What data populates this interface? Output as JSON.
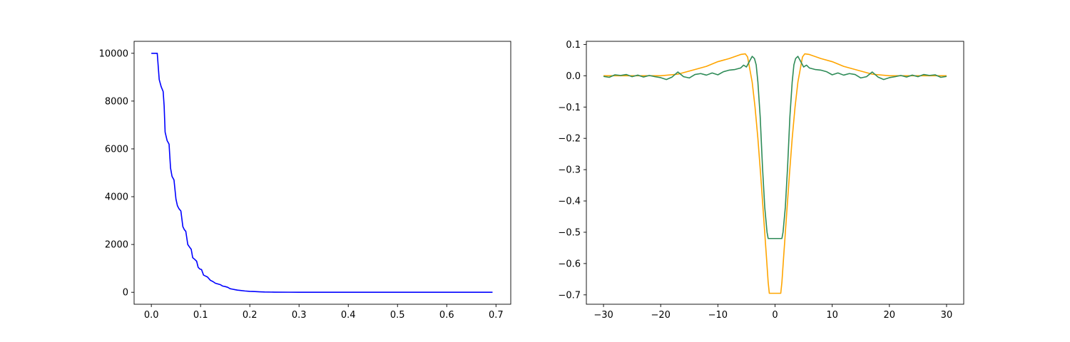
{
  "chart_data": [
    {
      "type": "line",
      "title": "",
      "xlabel": "",
      "ylabel": "",
      "xlim": [
        -0.035,
        0.73
      ],
      "ylim": [
        -500,
        10500
      ],
      "xticks": [
        0.0,
        0.1,
        0.2,
        0.3,
        0.4,
        0.5,
        0.6,
        0.7
      ],
      "xtick_labels": [
        "0.0",
        "0.1",
        "0.2",
        "0.3",
        "0.4",
        "0.5",
        "0.6",
        "0.7"
      ],
      "yticks": [
        0,
        2000,
        4000,
        6000,
        8000,
        10000
      ],
      "ytick_labels": [
        "0",
        "2000",
        "4000",
        "6000",
        "8000",
        "10000"
      ],
      "grid": false,
      "series": [
        {
          "color": "#0000ff",
          "x": [
            0.0,
            0.012,
            0.016,
            0.02,
            0.024,
            0.026,
            0.028,
            0.032,
            0.036,
            0.039,
            0.042,
            0.046,
            0.05,
            0.053,
            0.056,
            0.06,
            0.064,
            0.067,
            0.07,
            0.074,
            0.078,
            0.081,
            0.084,
            0.088,
            0.092,
            0.095,
            0.098,
            0.102,
            0.106,
            0.11,
            0.114,
            0.12,
            0.125,
            0.13,
            0.135,
            0.14,
            0.145,
            0.15,
            0.155,
            0.16,
            0.165,
            0.17,
            0.175,
            0.18,
            0.19,
            0.2,
            0.21,
            0.22,
            0.23,
            0.25,
            0.28,
            0.3,
            0.35,
            0.4,
            0.5,
            0.6,
            0.693
          ],
          "y": [
            10000,
            10000,
            8900,
            8600,
            8400,
            7800,
            6700,
            6350,
            6200,
            5200,
            4850,
            4700,
            3900,
            3620,
            3500,
            3400,
            2750,
            2620,
            2550,
            2000,
            1880,
            1800,
            1450,
            1380,
            1300,
            1050,
            980,
            950,
            720,
            680,
            640,
            500,
            450,
            380,
            350,
            320,
            260,
            240,
            210,
            150,
            130,
            110,
            90,
            80,
            55,
            40,
            30,
            20,
            12,
            6,
            3,
            2,
            1,
            0,
            0,
            0,
            0
          ]
        }
      ]
    },
    {
      "type": "line",
      "title": "",
      "xlabel": "",
      "ylabel": "",
      "xlim": [
        -33,
        33
      ],
      "ylim": [
        -0.73,
        0.11
      ],
      "xticks": [
        -30,
        -20,
        -10,
        0,
        10,
        20,
        30
      ],
      "xtick_labels": [
        "−30",
        "−20",
        "−10",
        "0",
        "10",
        "20",
        "30"
      ],
      "yticks": [
        0.1,
        0.0,
        -0.1,
        -0.2,
        -0.3,
        -0.4,
        -0.5,
        -0.6,
        -0.7
      ],
      "ytick_labels": [
        "0.1",
        "0.0",
        "−0.1",
        "−0.2",
        "−0.3",
        "−0.4",
        "−0.5",
        "−0.6",
        "−0.7"
      ],
      "grid": false,
      "series": [
        {
          "color": "#ffa500",
          "x": [
            -30,
            -20,
            -17,
            -15,
            -12,
            -10,
            -8,
            -6,
            -5.2,
            -4.8,
            -4.5,
            -4,
            -3.5,
            -3,
            -2.5,
            -2,
            -1.5,
            -1.2,
            -1,
            1,
            1.2,
            1.5,
            2,
            2.5,
            3,
            3.5,
            4,
            4.5,
            4.8,
            5.2,
            6,
            8,
            10,
            12,
            15,
            17,
            20,
            30
          ],
          "y": [
            0.0,
            0.0,
            0.005,
            0.015,
            0.03,
            0.045,
            0.055,
            0.068,
            0.07,
            0.06,
            0.03,
            -0.02,
            -0.1,
            -0.2,
            -0.32,
            -0.45,
            -0.58,
            -0.66,
            -0.695,
            -0.695,
            -0.66,
            -0.58,
            -0.45,
            -0.32,
            -0.2,
            -0.1,
            -0.02,
            0.03,
            0.06,
            0.07,
            0.068,
            0.055,
            0.045,
            0.03,
            0.015,
            0.005,
            0.0,
            0.0
          ]
        },
        {
          "color": "#2e8b57",
          "x": [
            -30,
            -29,
            -28,
            -27,
            -26,
            -25,
            -24,
            -23,
            -22,
            -21,
            -20,
            -19,
            -18,
            -17,
            -16,
            -15,
            -14,
            -13,
            -12,
            -11,
            -10,
            -9,
            -8,
            -7,
            -6,
            -5.5,
            -5,
            -4.5,
            -4,
            -3.6,
            -3.3,
            -3,
            -2.6,
            -2.2,
            -1.8,
            -1.4,
            -1.2,
            -1,
            1,
            1.2,
            1.4,
            1.8,
            2.2,
            2.6,
            3,
            3.3,
            3.6,
            4,
            4.5,
            5,
            5.5,
            6,
            7,
            8,
            9,
            10,
            11,
            12,
            13,
            14,
            15,
            16,
            17,
            18,
            19,
            20,
            21,
            22,
            23,
            24,
            25,
            26,
            27,
            28,
            29,
            30
          ],
          "y": [
            -0.002,
            -0.005,
            0.003,
            0.001,
            0.004,
            -0.003,
            0.002,
            -0.004,
            0.001,
            -0.003,
            -0.006,
            -0.012,
            -0.004,
            0.012,
            -0.003,
            -0.007,
            0.004,
            0.007,
            0.002,
            0.009,
            0.003,
            0.013,
            0.018,
            0.02,
            0.025,
            0.034,
            0.028,
            0.045,
            0.062,
            0.055,
            0.035,
            -0.02,
            -0.13,
            -0.29,
            -0.42,
            -0.5,
            -0.52,
            -0.52,
            -0.52,
            -0.52,
            -0.5,
            -0.42,
            -0.29,
            -0.13,
            -0.02,
            0.035,
            0.055,
            0.062,
            0.045,
            0.028,
            0.034,
            0.025,
            0.02,
            0.018,
            0.013,
            0.003,
            0.009,
            0.002,
            0.007,
            0.004,
            -0.007,
            -0.003,
            0.012,
            -0.004,
            -0.012,
            -0.006,
            -0.003,
            0.001,
            -0.004,
            0.002,
            -0.003,
            0.004,
            0.001,
            0.003,
            -0.005,
            -0.002
          ]
        }
      ]
    }
  ]
}
